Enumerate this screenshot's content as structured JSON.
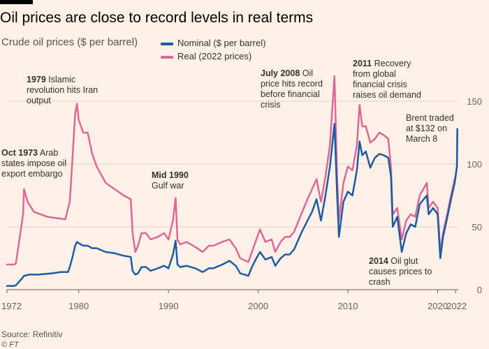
{
  "title": "Oil prices are close to record levels in real terms",
  "subtitle": "Crude oil prices ($ per barrel)",
  "colors": {
    "nominal": "#1e5aa0",
    "real": "#e0669a",
    "background": "#fff1e5",
    "grid": "#ddd3cb"
  },
  "footer": {
    "source": "Source: Refinitiv",
    "credit": "© FT"
  },
  "annotations": [
    {
      "bold": "Oct 1973",
      "text": " Arab states impose oil export embargo"
    },
    {
      "bold": "1979",
      "text": " Islamic revolution hits Iran output"
    },
    {
      "bold": "Mid 1990",
      "text": " Gulf war"
    },
    {
      "bold": "July 2008",
      "text": " Oil price hits record before financial crisis"
    },
    {
      "bold": "2011",
      "text": " Recovery from global financial crisis raises oil demand"
    },
    {
      "bold": "2014",
      "text": " Oil glut causes prices to crash"
    },
    {
      "bold": "",
      "text": "Brent traded at $132 on March 8"
    }
  ],
  "chart_data": {
    "type": "line",
    "title": "Oil prices are close to record levels in real terms",
    "subtitle": "Crude oil prices ($ per barrel)",
    "xlim": [
      1972,
      2022.3
    ],
    "ylim": [
      0,
      150
    ],
    "xticks": [
      1972,
      1980,
      1990,
      2000,
      2010,
      2020,
      2022
    ],
    "yticks": [
      0,
      50,
      100,
      150
    ],
    "y_axis_side": "right",
    "grid": "horizontal",
    "legend_position": "top",
    "series": [
      {
        "name": "Nominal ($ per barrel)",
        "x": [
          1972,
          1972.8,
          1973.0,
          1973.8,
          1973.9,
          1974.5,
          1975.5,
          1977,
          1978,
          1978.8,
          1979.0,
          1979.3,
          1979.6,
          1979.8,
          1980.0,
          1980.5,
          1981.0,
          1981.5,
          1982.0,
          1983.0,
          1984.0,
          1985.0,
          1985.8,
          1986.0,
          1986.3,
          1986.6,
          1987.0,
          1987.5,
          1988.0,
          1988.8,
          1989.5,
          1990.0,
          1990.5,
          1990.8,
          1991.0,
          1991.3,
          1992,
          1993,
          1993.8,
          1994.5,
          1995,
          1996,
          1996.8,
          1997.5,
          1998,
          1998.9,
          1999.3,
          1999.8,
          2000.2,
          2000.8,
          2001.5,
          2001.9,
          2002.5,
          2003.0,
          2003.5,
          2004.0,
          2004.8,
          2005.5,
          2006.0,
          2006.5,
          2007.0,
          2007.5,
          2008.0,
          2008.5,
          2008.8,
          2009.0,
          2009.5,
          2010.0,
          2010.5,
          2011.0,
          2011.3,
          2011.6,
          2012.0,
          2012.5,
          2013.0,
          2013.5,
          2014.0,
          2014.5,
          2014.8,
          2015.0,
          2015.5,
          2016.0,
          2016.5,
          2017.0,
          2017.5,
          2018.0,
          2018.8,
          2019.0,
          2019.5,
          2020.0,
          2020.3,
          2020.6,
          2021.0,
          2021.5,
          2021.9,
          2022.0,
          2022.15,
          2022.2
        ],
        "values": [
          3,
          3,
          3.5,
          10,
          11,
          12,
          12,
          13,
          14,
          14,
          18,
          26,
          35,
          38,
          37,
          35,
          35,
          33,
          33,
          30,
          29,
          27,
          26,
          15,
          12,
          13,
          18,
          18,
          15,
          17,
          19,
          17,
          28,
          39,
          20,
          18,
          19,
          17,
          14,
          17,
          17,
          20,
          23,
          19,
          13,
          11,
          18,
          25,
          30,
          24,
          26,
          19,
          25,
          28,
          28,
          32,
          45,
          55,
          62,
          72,
          55,
          75,
          98,
          132,
          75,
          42,
          70,
          78,
          75,
          95,
          118,
          107,
          110,
          97,
          105,
          108,
          107,
          105,
          90,
          50,
          58,
          30,
          45,
          52,
          50,
          68,
          75,
          60,
          65,
          60,
          25,
          42,
          55,
          72,
          85,
          90,
          98,
          128
        ]
      },
      {
        "name": "Real (2022 prices)",
        "x": [
          1972,
          1972.8,
          1973.0,
          1973.8,
          1973.9,
          1974.3,
          1975,
          1976.5,
          1977.5,
          1978.5,
          1979.0,
          1979.3,
          1979.6,
          1979.8,
          1980.0,
          1980.5,
          1981.0,
          1981.5,
          1982.0,
          1983.0,
          1984.0,
          1985.0,
          1985.8,
          1986.0,
          1986.3,
          1986.6,
          1987.0,
          1987.5,
          1988.0,
          1988.8,
          1989.5,
          1990.0,
          1990.5,
          1990.8,
          1991.0,
          1991.3,
          1992,
          1993,
          1993.8,
          1994.5,
          1995,
          1996,
          1996.8,
          1997.5,
          1998,
          1998.9,
          1999.3,
          1999.8,
          2000.2,
          2000.8,
          2001.5,
          2001.9,
          2002.5,
          2003.0,
          2003.5,
          2004.0,
          2004.8,
          2005.5,
          2006.0,
          2006.5,
          2007.0,
          2007.5,
          2008.0,
          2008.5,
          2008.8,
          2009.0,
          2009.5,
          2010.0,
          2010.5,
          2011.0,
          2011.3,
          2011.6,
          2012.0,
          2012.5,
          2013.0,
          2013.5,
          2014.0,
          2014.5,
          2014.8,
          2015.0,
          2015.5,
          2016.0,
          2016.5,
          2017.0,
          2017.5,
          2018.0,
          2018.8,
          2019.0,
          2019.5,
          2020.0,
          2020.3,
          2020.6,
          2021.0,
          2021.5,
          2021.9,
          2022.0,
          2022.15,
          2022.2
        ],
        "values": [
          20,
          20,
          21,
          60,
          80,
          70,
          62,
          58,
          57,
          56,
          70,
          105,
          140,
          148,
          135,
          125,
          125,
          108,
          98,
          85,
          80,
          75,
          72,
          45,
          30,
          35,
          45,
          45,
          40,
          42,
          45,
          40,
          55,
          73,
          40,
          36,
          38,
          34,
          30,
          35,
          35,
          38,
          40,
          33,
          25,
          22,
          30,
          40,
          48,
          38,
          40,
          30,
          38,
          42,
          42,
          46,
          60,
          72,
          80,
          88,
          70,
          90,
          115,
          170,
          90,
          55,
          85,
          98,
          95,
          115,
          147,
          130,
          130,
          117,
          120,
          125,
          123,
          120,
          98,
          60,
          65,
          40,
          55,
          60,
          58,
          75,
          85,
          65,
          70,
          65,
          30,
          45,
          58,
          75,
          88,
          90,
          98,
          128
        ]
      }
    ]
  }
}
